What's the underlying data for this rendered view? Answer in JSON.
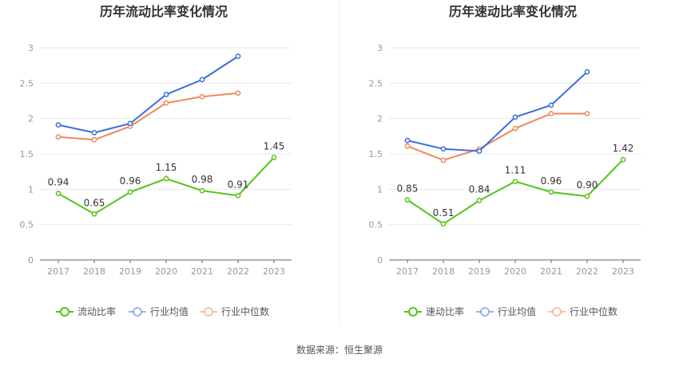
{
  "colors": {
    "current": "#52c41a",
    "industry_avg": "#3b6fdc",
    "industry_median": "#f0875a",
    "grid": "#e6e9f0",
    "axis": "#666666",
    "divider": "#eeeeee"
  },
  "source_text": "数据来源：恒生聚源",
  "chart_data": [
    {
      "type": "line",
      "title": "历年流动比率变化情况",
      "x": [
        "2017",
        "2018",
        "2019",
        "2020",
        "2021",
        "2022",
        "2023"
      ],
      "ylim": [
        0,
        3
      ],
      "yticks": [
        0,
        0.5,
        1,
        1.5,
        2,
        2.5,
        3
      ],
      "ytick_labels": [
        "0",
        "0.5",
        "1",
        "1.5",
        "2",
        "2.5",
        "3"
      ],
      "grid": true,
      "legend_position": "bottom",
      "series": [
        {
          "name": "流动比率",
          "color_key": "current",
          "values": [
            0.94,
            0.65,
            0.96,
            1.15,
            0.98,
            0.91,
            1.45
          ],
          "labels": [
            "0.94",
            "0.65",
            "0.96",
            "1.15",
            "0.98",
            "0.91",
            "1.45"
          ]
        },
        {
          "name": "行业均值",
          "color_key": "industry_avg",
          "values": [
            1.91,
            1.8,
            1.93,
            2.34,
            2.55,
            2.88,
            null
          ]
        },
        {
          "name": "行业中位数",
          "color_key": "industry_median",
          "values": [
            1.74,
            1.7,
            1.89,
            2.22,
            2.31,
            2.36,
            null
          ]
        }
      ]
    },
    {
      "type": "line",
      "title": "历年速动比率变化情况",
      "x": [
        "2017",
        "2018",
        "2019",
        "2020",
        "2021",
        "2022",
        "2023"
      ],
      "ylim": [
        0,
        3
      ],
      "yticks": [
        0,
        0.5,
        1,
        1.5,
        2,
        2.5,
        3
      ],
      "ytick_labels": [
        "0",
        "0.5",
        "1",
        "1.5",
        "2",
        "2.5",
        "3"
      ],
      "grid": true,
      "legend_position": "bottom",
      "series": [
        {
          "name": "速动比率",
          "color_key": "current",
          "values": [
            0.85,
            0.51,
            0.84,
            1.11,
            0.96,
            0.9,
            1.42
          ],
          "labels": [
            "0.85",
            "0.51",
            "0.84",
            "1.11",
            "0.96",
            "0.90",
            "1.42"
          ]
        },
        {
          "name": "行业均值",
          "color_key": "industry_avg",
          "values": [
            1.69,
            1.57,
            1.54,
            2.02,
            2.19,
            2.66,
            null
          ]
        },
        {
          "name": "行业中位数",
          "color_key": "industry_median",
          "values": [
            1.61,
            1.41,
            1.57,
            1.86,
            2.07,
            2.07,
            null
          ]
        }
      ]
    }
  ]
}
